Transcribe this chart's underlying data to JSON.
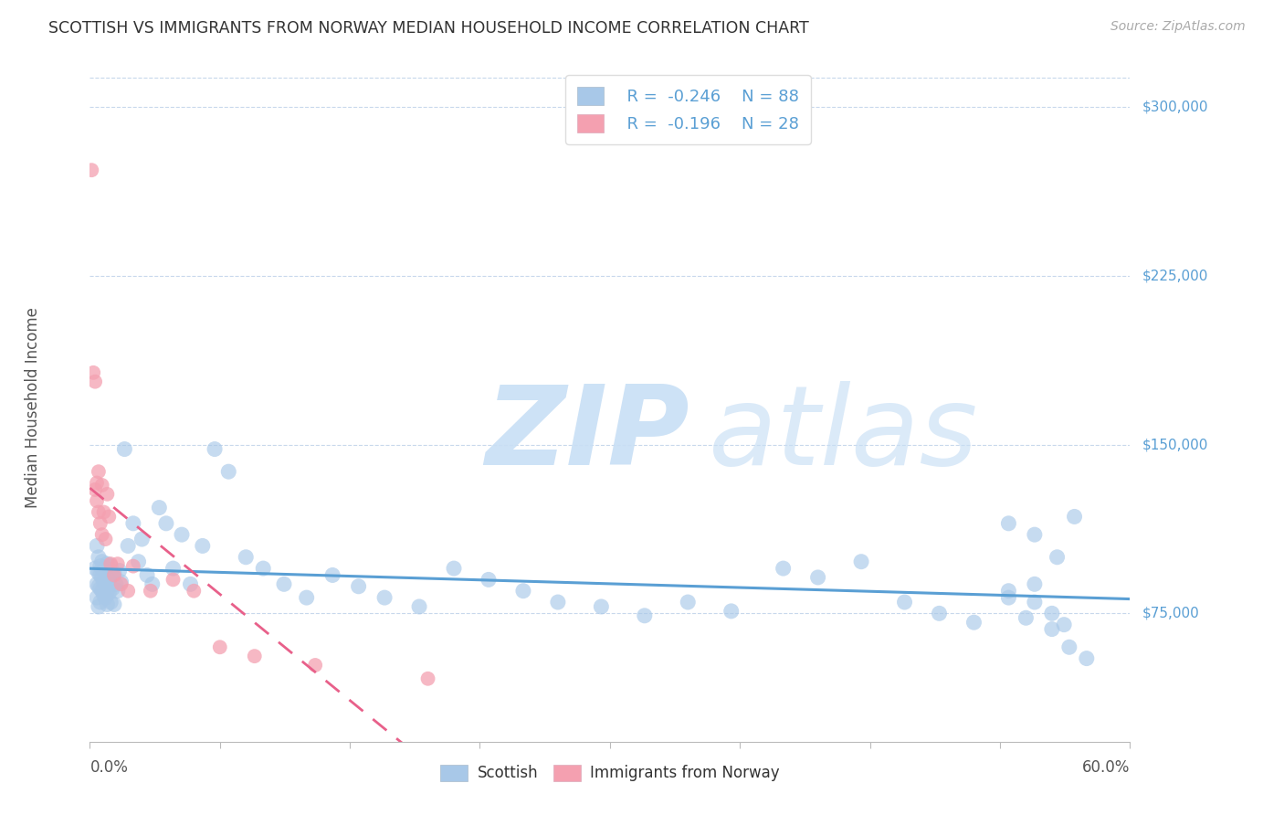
{
  "title": "SCOTTISH VS IMMIGRANTS FROM NORWAY MEDIAN HOUSEHOLD INCOME CORRELATION CHART",
  "source": "Source: ZipAtlas.com",
  "ylabel": "Median Household Income",
  "ytick_values": [
    75000,
    150000,
    225000,
    300000
  ],
  "ytick_labels": [
    "$75,000",
    "$150,000",
    "$225,000",
    "$300,000"
  ],
  "xmin": 0.0,
  "xmax": 0.6,
  "ymin": 18000,
  "ymax": 315000,
  "scottish_R": -0.246,
  "scottish_N": 88,
  "norway_R": -0.196,
  "norway_N": 28,
  "scottish_color": "#a8c8e8",
  "norway_color": "#f4a0b0",
  "scottish_line_color": "#5a9fd4",
  "norway_line_color": "#e8608a",
  "background_color": "#ffffff",
  "grid_color": "#c8d8ec",
  "right_axis_color": "#5a9fd4",
  "title_color": "#333333",
  "source_color": "#aaaaaa",
  "legend_text_color": "#333333",
  "legend_value_color": "#5a9fd4",
  "watermark_zip_color": "#c8dff5",
  "watermark_atlas_color": "#c8dff5",
  "scottish_x": [
    0.003,
    0.004,
    0.004,
    0.004,
    0.005,
    0.005,
    0.005,
    0.005,
    0.006,
    0.006,
    0.006,
    0.006,
    0.007,
    0.007,
    0.007,
    0.008,
    0.008,
    0.008,
    0.009,
    0.009,
    0.009,
    0.01,
    0.01,
    0.01,
    0.01,
    0.011,
    0.011,
    0.012,
    0.012,
    0.013,
    0.013,
    0.014,
    0.014,
    0.015,
    0.016,
    0.017,
    0.018,
    0.02,
    0.022,
    0.025,
    0.028,
    0.03,
    0.033,
    0.036,
    0.04,
    0.044,
    0.048,
    0.053,
    0.058,
    0.065,
    0.072,
    0.08,
    0.09,
    0.1,
    0.112,
    0.125,
    0.14,
    0.155,
    0.17,
    0.19,
    0.21,
    0.23,
    0.25,
    0.27,
    0.295,
    0.32,
    0.345,
    0.37,
    0.4,
    0.42,
    0.445,
    0.47,
    0.49,
    0.51,
    0.53,
    0.545,
    0.555,
    0.562,
    0.54,
    0.555,
    0.565,
    0.575,
    0.53,
    0.545,
    0.558,
    0.568,
    0.545,
    0.53
  ],
  "scottish_y": [
    95000,
    88000,
    105000,
    82000,
    93000,
    87000,
    100000,
    78000,
    92000,
    86000,
    96000,
    80000,
    91000,
    85000,
    98000,
    89000,
    83000,
    94000,
    88000,
    82000,
    95000,
    91000,
    85000,
    97000,
    79000,
    90000,
    84000,
    96000,
    80000,
    92000,
    86000,
    93000,
    79000,
    88000,
    85000,
    94000,
    89000,
    148000,
    105000,
    115000,
    98000,
    108000,
    92000,
    88000,
    122000,
    115000,
    95000,
    110000,
    88000,
    105000,
    148000,
    138000,
    100000,
    95000,
    88000,
    82000,
    92000,
    87000,
    82000,
    78000,
    95000,
    90000,
    85000,
    80000,
    78000,
    74000,
    80000,
    76000,
    95000,
    91000,
    98000,
    80000,
    75000,
    71000,
    85000,
    80000,
    75000,
    70000,
    73000,
    68000,
    60000,
    55000,
    115000,
    110000,
    100000,
    118000,
    88000,
    82000
  ],
  "norway_x": [
    0.001,
    0.002,
    0.003,
    0.003,
    0.004,
    0.004,
    0.005,
    0.005,
    0.006,
    0.007,
    0.007,
    0.008,
    0.009,
    0.01,
    0.011,
    0.012,
    0.014,
    0.016,
    0.018,
    0.022,
    0.025,
    0.035,
    0.048,
    0.06,
    0.075,
    0.095,
    0.13,
    0.195
  ],
  "norway_y": [
    272000,
    182000,
    178000,
    130000,
    133000,
    125000,
    138000,
    120000,
    115000,
    132000,
    110000,
    120000,
    108000,
    128000,
    118000,
    97000,
    92000,
    97000,
    88000,
    85000,
    96000,
    85000,
    90000,
    85000,
    60000,
    56000,
    52000,
    46000
  ]
}
